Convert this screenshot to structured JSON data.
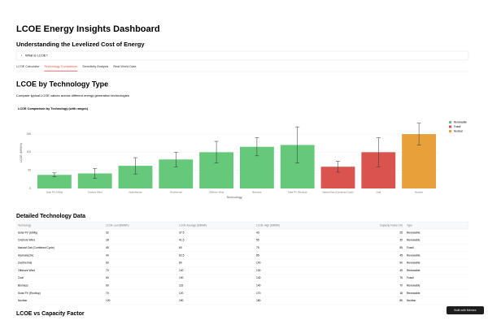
{
  "header": {
    "title": "LCOE Energy Insights Dashboard",
    "subtitle": "Understanding the Levelized Cost of Energy",
    "expander": "What is LCOE?"
  },
  "tabs": [
    "LCOE Calculator",
    "Technology Comparison",
    "Sensitivity Analysis",
    "Real-World Data"
  ],
  "active_tab": 1,
  "section": {
    "title": "LCOE by Technology Type",
    "description": "Compare typical LCOE values across different energy generation technologies"
  },
  "chart": {
    "type": "bar",
    "title": "LCOE Comparison by Technology (with ranges)",
    "x_label": "Technology",
    "y_label": "LCOE ($/MWh)",
    "categories": [
      "Solar PV (Utility)",
      "Onshore Wind",
      "Hydroelectric",
      "Geothermal",
      "Offshore Wind",
      "Biomass",
      "Solar PV (Rooftop)",
      "Natural Gas (Combined Cycle)",
      "Coal",
      "Nuclear"
    ],
    "values": [
      37.5,
      41.5,
      62.5,
      80,
      100,
      115,
      120,
      60,
      100,
      150
    ],
    "low": [
      32,
      28,
      40,
      60,
      70,
      90,
      70,
      45,
      60,
      120
    ],
    "high": [
      43,
      55,
      85,
      100,
      130,
      140,
      170,
      75,
      140,
      180
    ],
    "types": [
      "Renewable",
      "Renewable",
      "Renewable",
      "Renewable",
      "Renewable",
      "Renewable",
      "Renewable",
      "Fossil",
      "Fossil",
      "Nuclear"
    ],
    "legend": [
      {
        "name": "Renewable",
        "color": "#66c97a"
      },
      {
        "name": "Fossil",
        "color": "#d9534f"
      },
      {
        "name": "Nuclear",
        "color": "#e8a03a"
      }
    ],
    "ylim": [
      0,
      195
    ],
    "yticks": [
      0,
      50,
      100,
      150
    ],
    "grid": true
  },
  "table": {
    "title": "Detailed Technology Data",
    "columns": [
      "Technology",
      "LCOE Low ($/MWh)",
      "LCOE Average ($/MWh)",
      "LCOE High ($/MWh)",
      "Capacity Factor (%)",
      "Type"
    ],
    "rows": [
      [
        "Solar PV (Utility)",
        32,
        37.5,
        43,
        25,
        "Renewable"
      ],
      [
        "Onshore Wind",
        28,
        41.5,
        55,
        35,
        "Renewable"
      ],
      [
        "Natural Gas (Combined Cycle)",
        45,
        60,
        75,
        55,
        "Fossil"
      ],
      [
        "Hydroelectric",
        40,
        62.5,
        85,
        45,
        "Renewable"
      ],
      [
        "Geothermal",
        60,
        80,
        100,
        90,
        "Renewable"
      ],
      [
        "Offshore Wind",
        70,
        100,
        130,
        45,
        "Renewable"
      ],
      [
        "Coal",
        60,
        100,
        140,
        75,
        "Fossil"
      ],
      [
        "Biomass",
        90,
        115,
        140,
        70,
        "Renewable"
      ],
      [
        "Solar PV (Rooftop)",
        70,
        120,
        170,
        18,
        "Renewable"
      ],
      [
        "Nuclear",
        120,
        150,
        180,
        85,
        "Nuclear"
      ]
    ]
  },
  "next_section": "LCOE vs Capacity Factor",
  "badge": "Built with Memex"
}
